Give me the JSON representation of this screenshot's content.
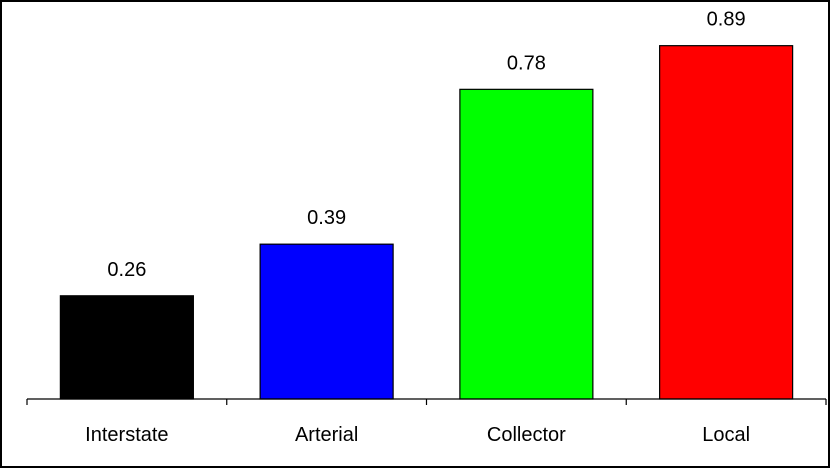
{
  "chart_data": {
    "type": "bar",
    "title": "",
    "xlabel": "",
    "ylabel": "",
    "categories": [
      "Interstate",
      "Arterial",
      "Collector",
      "Local"
    ],
    "values": [
      0.26,
      0.39,
      0.78,
      0.89
    ],
    "value_labels": [
      "0.26",
      "0.39",
      "0.78",
      "0.89"
    ],
    "colors": [
      "#000000",
      "#0000ff",
      "#00ff00",
      "#ff0000"
    ],
    "ylim": [
      0,
      1.0
    ],
    "grid": false,
    "legend": "none"
  }
}
